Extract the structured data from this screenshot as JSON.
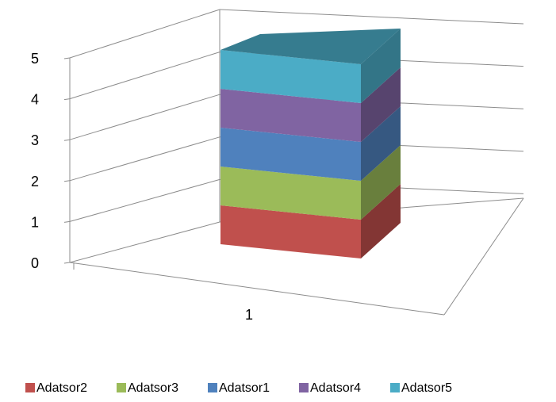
{
  "chart_data": {
    "type": "bar",
    "stacked": true,
    "three_d": true,
    "categories": [
      "1"
    ],
    "series": [
      {
        "name": "Adatsor2",
        "values": [
          1
        ],
        "color": "#C0504D"
      },
      {
        "name": "Adatsor3",
        "values": [
          1
        ],
        "color": "#9BBB59"
      },
      {
        "name": "Adatsor1",
        "values": [
          1
        ],
        "color": "#4F81BD"
      },
      {
        "name": "Adatsor4",
        "values": [
          1
        ],
        "color": "#8064A2"
      },
      {
        "name": "Adatsor5",
        "values": [
          1
        ],
        "color": "#4BACC6"
      }
    ],
    "ylim": [
      0,
      5
    ],
    "yticks": [
      "0",
      "1",
      "2",
      "3",
      "4",
      "5"
    ],
    "grid": true,
    "legend_position": "bottom"
  }
}
